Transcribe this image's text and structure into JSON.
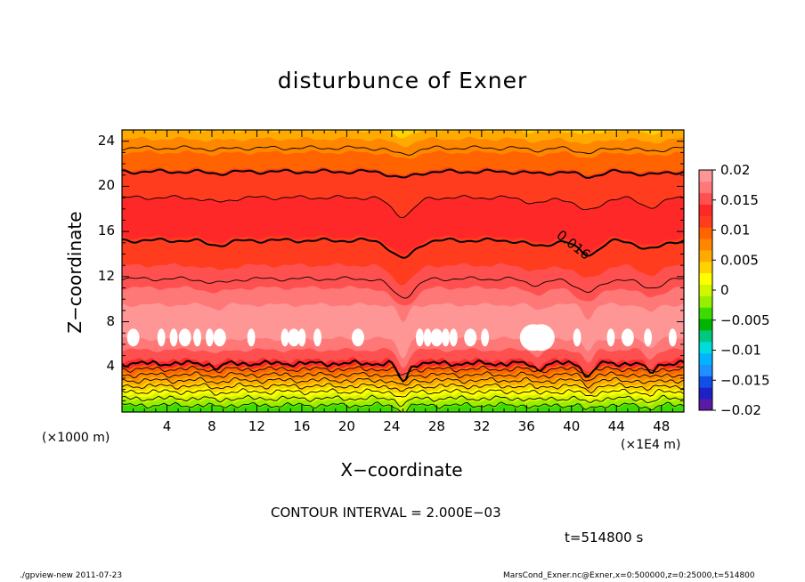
{
  "chart_data": {
    "type": "contour",
    "title": "disturbunce of Exner",
    "xlabel": "X−coordinate",
    "ylabel": "Z−coordinate",
    "x_unit_label": "(×1000 m)",
    "x_scale_label": "(×1E4 m)",
    "xlim": [
      0,
      50
    ],
    "ylim": [
      0,
      25
    ],
    "xticks": [
      4,
      8,
      12,
      16,
      20,
      24,
      28,
      32,
      36,
      40,
      44,
      48
    ],
    "yticks": [
      4,
      8,
      12,
      16,
      20,
      24
    ],
    "contour_interval_text": "CONTOUR INTERVAL = 2.000E−03",
    "time_text": "t=514800 s",
    "contour_label": "0.016",
    "colorbar": {
      "tick_labels": [
        "0.02",
        "0.015",
        "0.01",
        "0.005",
        "0",
        "−0.005",
        "−0.01",
        "−0.015",
        "−0.02"
      ],
      "tick_values": [
        0.02,
        0.015,
        0.01,
        0.005,
        0,
        -0.005,
        -0.01,
        -0.015,
        -0.02
      ],
      "colors": [
        "#5a1aa6",
        "#2020c8",
        "#1050e6",
        "#1e90ff",
        "#00b4ff",
        "#00dcdc",
        "#00c87d",
        "#00b400",
        "#3cdc00",
        "#96ee00",
        "#d2f500",
        "#ffff00",
        "#ffd200",
        "#ffaa00",
        "#ff8700",
        "#ff6400",
        "#ff3c1e",
        "#ff2828",
        "#ff5050",
        "#ff7878",
        "#ff9696"
      ]
    },
    "z_profile": [
      {
        "z": 0.0,
        "value": 0.0,
        "color": "#3cdc00"
      },
      {
        "z": 0.5,
        "value": 0.002,
        "color": "#96ee00"
      },
      {
        "z": 1.0,
        "value": 0.004,
        "color": "#d2f500"
      },
      {
        "z": 1.5,
        "value": 0.006,
        "color": "#ffff00"
      },
      {
        "z": 2.0,
        "value": 0.008,
        "color": "#ffd200"
      },
      {
        "z": 2.5,
        "value": 0.01,
        "color": "#ffaa00"
      },
      {
        "z": 3.0,
        "value": 0.012,
        "color": "#ff8700"
      },
      {
        "z": 3.5,
        "value": 0.014,
        "color": "#ff6400"
      },
      {
        "z": 4.0,
        "value": 0.016,
        "color": "#ff2828"
      },
      {
        "z": 4.6,
        "value": 0.018,
        "color": "#ff5050"
      },
      {
        "z": 5.5,
        "value": 0.019,
        "color": "#ff7878"
      },
      {
        "z": 6.5,
        "value": 0.02,
        "color": "#ff9696"
      },
      {
        "z": 9.5,
        "value": 0.019,
        "color": "#ff7878"
      },
      {
        "z": 11.0,
        "value": 0.018,
        "color": "#ff5050"
      },
      {
        "z": 13.0,
        "value": 0.017,
        "color": "#ff3c1e"
      },
      {
        "z": 15.5,
        "value": 0.016,
        "color": "#ff2828"
      },
      {
        "z": 19.0,
        "value": 0.014,
        "color": "#ff3c1e"
      },
      {
        "z": 21.5,
        "value": 0.012,
        "color": "#ff6400"
      },
      {
        "z": 23.0,
        "value": 0.01,
        "color": "#ff8700"
      },
      {
        "z": 24.2,
        "value": 0.008,
        "color": "#ffaa00"
      },
      {
        "z": 25.0,
        "value": 0.006,
        "color": "#ffd200"
      }
    ],
    "contour_levels": [
      {
        "value": 0.008,
        "z": 23.4
      },
      {
        "value": 0.01,
        "z": 21.3,
        "bold": true
      },
      {
        "value": 0.012,
        "z": 19.0
      },
      {
        "value": 0.014,
        "z": 15.2,
        "bold": true
      },
      {
        "value": 0.018,
        "z": 11.8
      },
      {
        "value": 0.016,
        "z": 4.3,
        "bold": true
      },
      {
        "value": 0.014,
        "z": 3.8
      },
      {
        "value": 0.012,
        "z": 3.3
      },
      {
        "value": 0.01,
        "z": 2.8
      },
      {
        "value": 0.008,
        "z": 2.3
      },
      {
        "value": 0.006,
        "z": 1.8
      },
      {
        "value": 0.004,
        "z": 1.2
      },
      {
        "value": 0.002,
        "z": 0.6
      }
    ],
    "dips_x": [
      8.5,
      25,
      37,
      41.5,
      47
    ]
  },
  "footer": {
    "left": "./gpview-new 2011-07-23",
    "right": "MarsCond_Exner.nc@Exner,x=0:500000,z=0:25000,t=514800"
  }
}
